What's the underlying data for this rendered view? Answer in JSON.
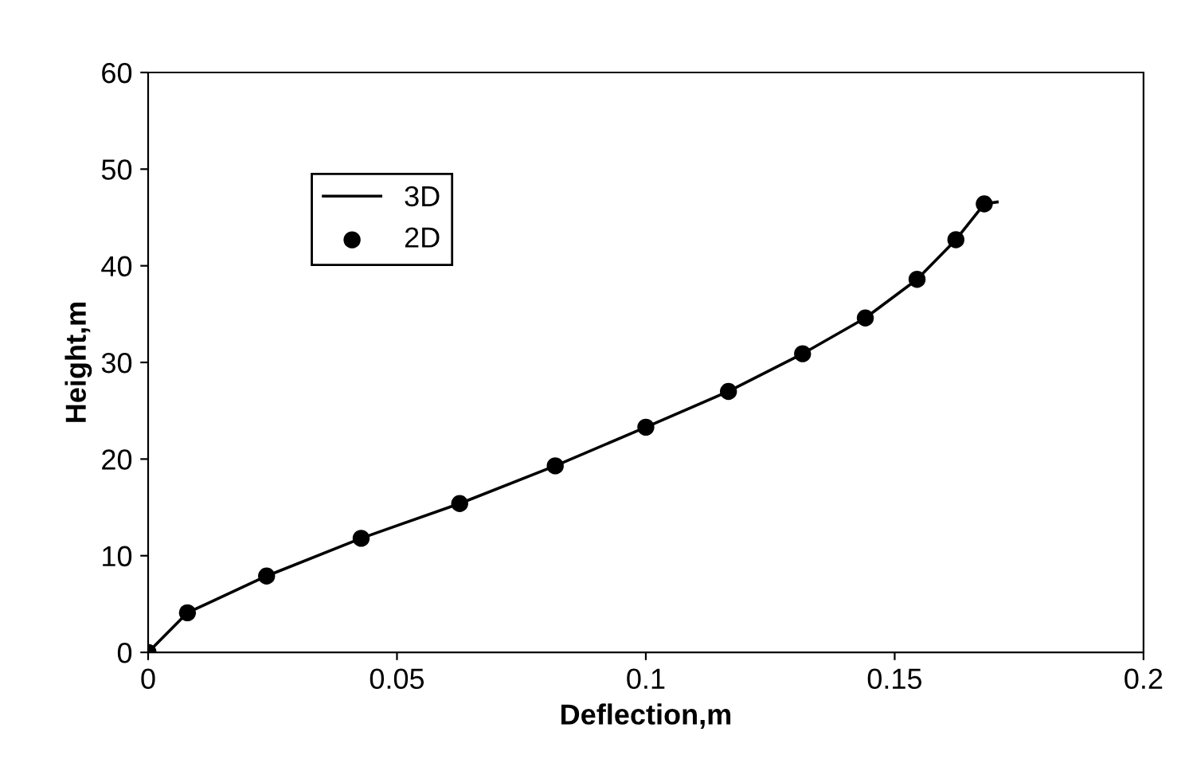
{
  "chart_data": {
    "type": "line",
    "xlabel": "Deflection,m",
    "ylabel": "Height,m",
    "xlim": [
      0,
      0.2
    ],
    "xticks": [
      0,
      0.05,
      0.1,
      0.15,
      0.2
    ],
    "ylim": [
      0,
      60
    ],
    "yticks": [
      0,
      10,
      20,
      30,
      40,
      50,
      60
    ],
    "grid": false,
    "legend": "top left",
    "series": [
      {
        "name": "3D",
        "color": "#000000",
        "marker": "none",
        "line_style": "solid",
        "x": [
          0,
          0.0079,
          0.0238,
          0.0428,
          0.0626,
          0.0818,
          0.1,
          0.1166,
          0.1315,
          0.1441,
          0.1545,
          0.1623,
          0.168,
          0.1706
        ],
        "values": [
          0,
          4.1,
          7.9,
          11.8,
          15.4,
          19.3,
          23.3,
          27.0,
          30.9,
          34.6,
          38.6,
          42.7,
          46.4,
          46.6
        ]
      },
      {
        "name": "2D",
        "type": "scatter",
        "color": "#000000",
        "marker": "circle",
        "x": [
          0,
          0.0079,
          0.0238,
          0.0428,
          0.0626,
          0.0818,
          0.1,
          0.1166,
          0.1315,
          0.1441,
          0.1545,
          0.1623,
          0.168
        ],
        "values": [
          0,
          4.1,
          7.9,
          11.8,
          15.4,
          19.3,
          23.3,
          27.0,
          30.9,
          34.6,
          38.6,
          42.7,
          46.4
        ]
      }
    ]
  }
}
